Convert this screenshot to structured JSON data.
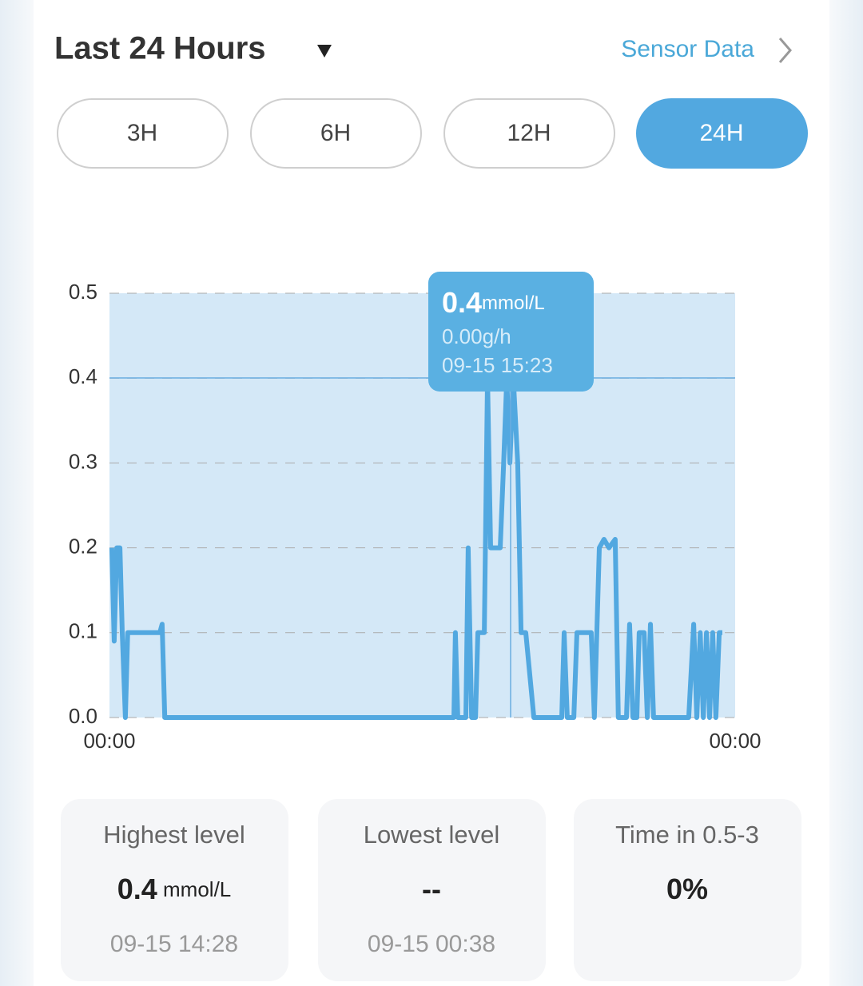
{
  "header": {
    "title": "Last 24 Hours",
    "link": "Sensor Data"
  },
  "tabs": [
    "3H",
    "6H",
    "12H",
    "24H"
  ],
  "selected_tab": 3,
  "chart_data": {
    "type": "line",
    "x": [
      0.09,
      0.18,
      0.28,
      0.4,
      0.49,
      0.61,
      0.7,
      1.93,
      2.02,
      2.12,
      2.3,
      13.21,
      13.27,
      13.36,
      13.67,
      13.76,
      13.89,
      14.04,
      14.13,
      14.38,
      14.5,
      14.62,
      14.99,
      15.12,
      15.24,
      15.36,
      15.49,
      15.66,
      15.79,
      15.97,
      16.28,
      17.35,
      17.44,
      17.56,
      17.81,
      17.93,
      18.48,
      18.6,
      18.79,
      18.97,
      19.16,
      19.4,
      19.52,
      19.83,
      19.95,
      20.08,
      20.23,
      20.32,
      20.51,
      20.63,
      20.75,
      20.87,
      22.22,
      22.41,
      22.53,
      22.66,
      22.78,
      22.9,
      23.02,
      23.14,
      23.26,
      23.39,
      23.51
    ],
    "values": [
      0.2,
      0.09,
      0.2,
      0.2,
      0.1,
      0,
      0.1,
      0.1,
      0.11,
      0,
      0,
      0,
      0.1,
      0,
      0,
      0.2,
      0,
      0,
      0.1,
      0.1,
      0.4,
      0.2,
      0.2,
      0.3,
      0.4,
      0.3,
      0.4,
      0.3,
      0.1,
      0.1,
      0,
      0,
      0.1,
      0,
      0,
      0.1,
      0.1,
      0,
      0.2,
      0.21,
      0.2,
      0.21,
      0,
      0,
      0.11,
      0,
      0,
      0.1,
      0.1,
      0,
      0.11,
      0,
      0,
      0.11,
      0,
      0.1,
      0,
      0.1,
      0,
      0.1,
      0,
      0.1,
      0.1
    ],
    "color": "#52a8e0",
    "xlim": [
      0,
      24
    ],
    "xticks": [
      {
        "value": 0,
        "label": "00:00"
      },
      {
        "value": 24,
        "label": "00:00"
      }
    ],
    "ylim": [
      0,
      0.5
    ],
    "yticks": [
      {
        "value": 0,
        "label": "0.0"
      },
      0.1,
      0.2,
      0.3,
      0.4,
      0.5
    ],
    "grid": true,
    "tooltip": {
      "value": "0.4",
      "unit": "mmol/L",
      "rate": "0.00g/h",
      "time": "09-15 15:23"
    }
  },
  "stats": [
    {
      "label": "Highest level",
      "value": "0.4",
      "unit": "mmol/L",
      "time": "09-15 14:28"
    },
    {
      "label": "Lowest level",
      "value": "--",
      "time": "09-15 00:38"
    },
    {
      "label": "Time in 0.5-3",
      "value": "0%"
    }
  ]
}
